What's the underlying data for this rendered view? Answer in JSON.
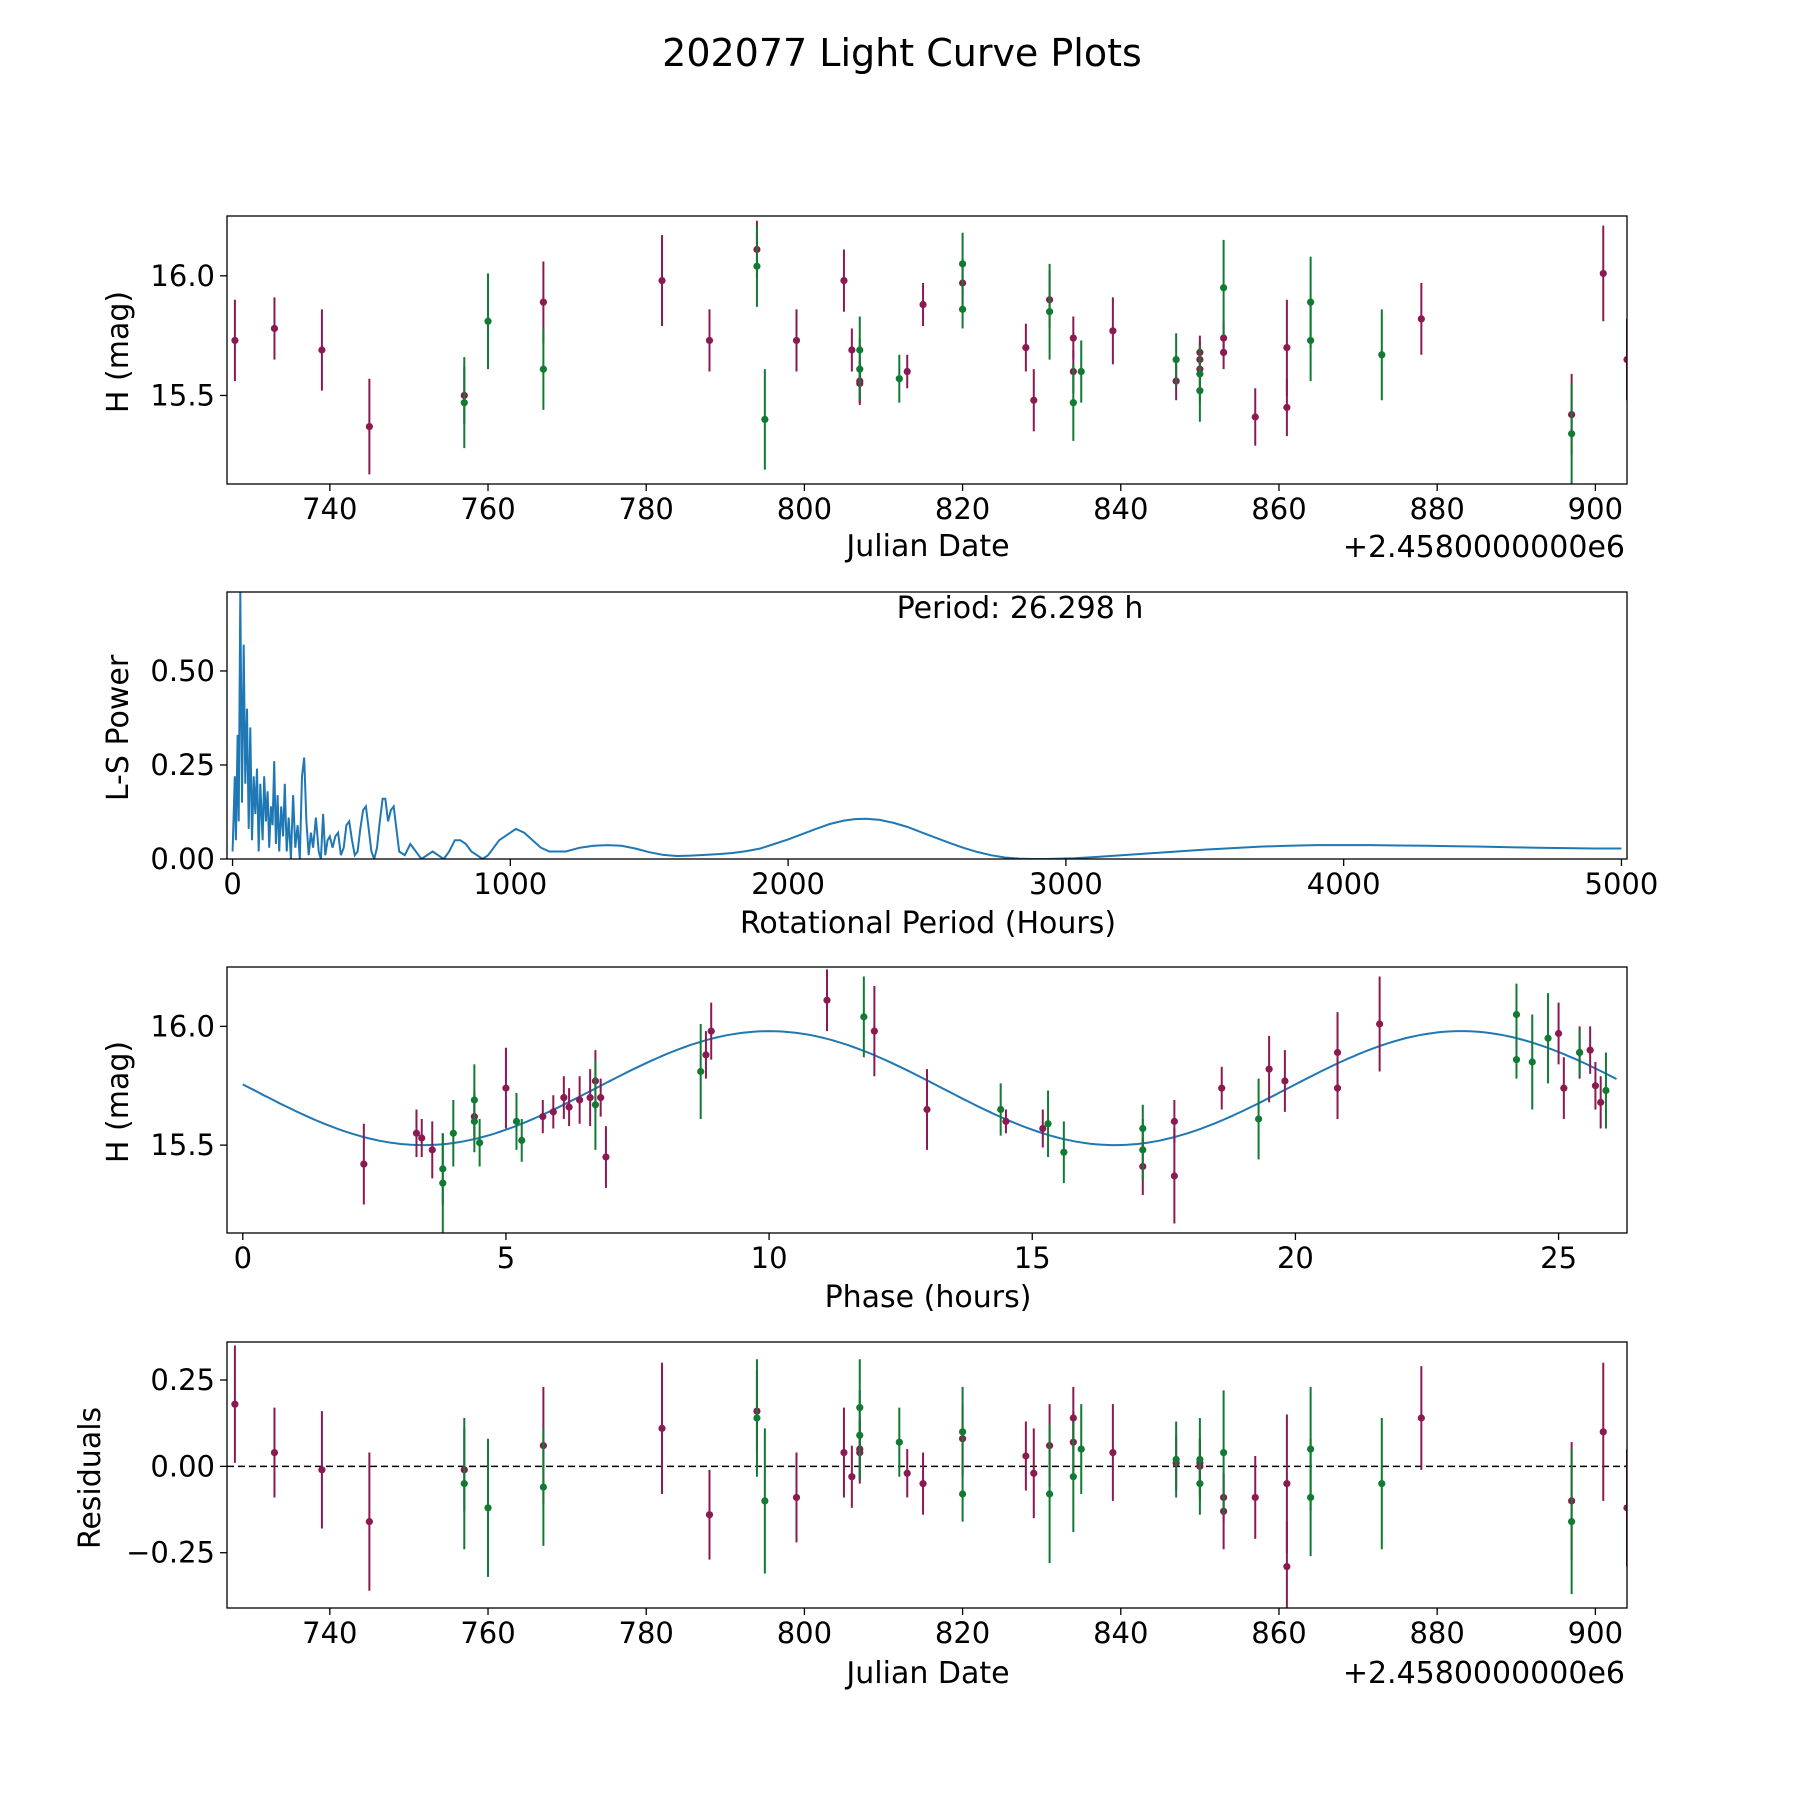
{
  "title": "202077 Light Curve Plots",
  "colors": {
    "magenta": "#8b1a52",
    "green": "#117a33",
    "line": "#1f77b4",
    "axis": "#000000"
  },
  "chart_data": [
    {
      "id": "lightcurve",
      "type": "scatter",
      "title": "",
      "xlabel": "Julian Date",
      "ylabel": "H (mag)",
      "offset_label": "+2.4580000000e6",
      "xlim": [
        727,
        904
      ],
      "ylim": [
        15.13,
        16.25
      ],
      "xticks": [
        740,
        760,
        780,
        800,
        820,
        840,
        860,
        880,
        900
      ],
      "xtick_labels": [
        "740",
        "760",
        "780",
        "800",
        "820",
        "840",
        "860",
        "880",
        "900"
      ],
      "yticks": [
        15.5,
        16.0
      ],
      "ytick_labels": [
        "15.5",
        "16.0"
      ],
      "grid": false,
      "series": [
        {
          "name": "magenta",
          "color": "#8b1a52",
          "x": [
            728.0,
            733.0,
            739.0,
            745.0,
            757.0,
            767.0,
            782.0,
            788.0,
            794.0,
            799.0,
            805.0,
            806.0,
            807.0,
            807.0,
            813.0,
            815.0,
            820.0,
            828.0,
            829.0,
            831.0,
            834.0,
            834.0,
            839.0,
            847.0,
            850.0,
            850.0,
            850.0,
            853.0,
            853.0,
            857.0,
            861.0,
            861.0,
            878.0,
            897.0,
            901.0,
            904.0
          ],
          "y": [
            15.73,
            15.78,
            15.69,
            15.37,
            15.5,
            15.89,
            15.98,
            15.73,
            16.11,
            15.73,
            15.98,
            15.69,
            15.56,
            15.55,
            15.6,
            15.88,
            15.97,
            15.7,
            15.48,
            15.9,
            15.6,
            15.74,
            15.77,
            15.56,
            15.61,
            15.65,
            15.68,
            15.68,
            15.74,
            15.41,
            15.45,
            15.7,
            15.82,
            15.42,
            16.01,
            15.65
          ],
          "err": [
            0.17,
            0.13,
            0.17,
            0.2,
            0.12,
            0.17,
            0.19,
            0.13,
            0.12,
            0.13,
            0.13,
            0.09,
            0.09,
            0.09,
            0.07,
            0.09,
            0.1,
            0.1,
            0.13,
            0.12,
            0.09,
            0.09,
            0.14,
            0.08,
            0.08,
            0.07,
            0.07,
            0.07,
            0.07,
            0.12,
            0.12,
            0.2,
            0.15,
            0.17,
            0.2,
            0.17
          ]
        },
        {
          "name": "green",
          "color": "#117a33",
          "x": [
            757.0,
            760.0,
            767.0,
            794.0,
            795.0,
            807.0,
            807.0,
            812.0,
            820.0,
            820.0,
            831.0,
            834.0,
            835.0,
            847.0,
            850.0,
            850.0,
            853.0,
            864.0,
            864.0,
            873.0,
            897.0
          ],
          "y": [
            15.47,
            15.81,
            15.61,
            16.04,
            15.4,
            15.61,
            15.69,
            15.57,
            16.05,
            15.86,
            15.85,
            15.47,
            15.6,
            15.65,
            15.52,
            15.59,
            15.95,
            15.89,
            15.73,
            15.67,
            15.34
          ],
          "err": [
            0.19,
            0.2,
            0.17,
            0.17,
            0.21,
            0.13,
            0.14,
            0.1,
            0.13,
            0.08,
            0.2,
            0.16,
            0.13,
            0.11,
            0.13,
            0.12,
            0.2,
            0.19,
            0.17,
            0.19,
            0.21
          ]
        }
      ]
    },
    {
      "id": "periodogram",
      "type": "line",
      "title": "",
      "annotation": "Period: 26.298 h",
      "xlabel": "Rotational Period (Hours)",
      "ylabel": "L-S Power",
      "xlim": [
        -20,
        5020
      ],
      "ylim": [
        0,
        0.71
      ],
      "xticks": [
        0,
        1000,
        2000,
        3000,
        4000,
        5000
      ],
      "xtick_labels": [
        "0",
        "1000",
        "2000",
        "3000",
        "4000",
        "5000"
      ],
      "yticks": [
        0,
        0.25,
        0.5
      ],
      "ytick_labels": [
        "0.00",
        "0.25",
        "0.50"
      ],
      "grid": false,
      "series": [
        {
          "name": "L-S Power",
          "color": "#1f77b4",
          "x": [
            0,
            8,
            12,
            18,
            22,
            28,
            34,
            40,
            46,
            52,
            58,
            64,
            70,
            76,
            82,
            88,
            94,
            100,
            108,
            114,
            120,
            126,
            132,
            138,
            144,
            150,
            156,
            162,
            168,
            175,
            182,
            188,
            195,
            202,
            210,
            218,
            226,
            234,
            242,
            250,
            258,
            266,
            274,
            282,
            290,
            300,
            310,
            318,
            326,
            334,
            342,
            350,
            360,
            370,
            380,
            390,
            400,
            410,
            420,
            430,
            440,
            450,
            460,
            470,
            480,
            490,
            500,
            510,
            520,
            530,
            540,
            550,
            560,
            570,
            580,
            590,
            600,
            620,
            640,
            660,
            680,
            700,
            720,
            740,
            760,
            780,
            800,
            820,
            840,
            860,
            880,
            900,
            920,
            940,
            960,
            980,
            1000,
            1020,
            1050,
            1080,
            1110,
            1140,
            1170,
            1200,
            1250,
            1300,
            1350,
            1400,
            1450,
            1500,
            1550,
            1600,
            1650,
            1700,
            1750,
            1800,
            1850,
            1900,
            1950,
            2000,
            2050,
            2100,
            2150,
            2200,
            2240,
            2280,
            2330,
            2380,
            2430,
            2480,
            2530,
            2580,
            2630,
            2680,
            2730,
            2780,
            2830,
            2880,
            2930,
            2980,
            3030,
            3100,
            3200,
            3300,
            3400,
            3500,
            3600,
            3700,
            3800,
            3900,
            4000,
            4100,
            4200,
            4300,
            4400,
            4500,
            4600,
            4700,
            4800,
            4900,
            5000
          ],
          "y": [
            0.02,
            0.22,
            0.05,
            0.33,
            0.1,
            0.71,
            0.15,
            0.57,
            0.2,
            0.4,
            0.08,
            0.35,
            0.05,
            0.22,
            0.12,
            0.24,
            0.02,
            0.2,
            0.05,
            0.22,
            0.1,
            0.18,
            0.03,
            0.14,
            0.09,
            0.26,
            0.04,
            0.17,
            0.02,
            0.14,
            0.06,
            0.2,
            0.02,
            0.11,
            0.0,
            0.17,
            0.03,
            0.09,
            0.0,
            0.22,
            0.27,
            0.1,
            0.01,
            0.07,
            0.03,
            0.11,
            0.02,
            0.0,
            0.12,
            0.01,
            0.05,
            0.06,
            0.03,
            0.06,
            0.07,
            0.01,
            0.03,
            0.09,
            0.1,
            0.05,
            0.01,
            0.02,
            0.08,
            0.13,
            0.14,
            0.08,
            0.02,
            0.0,
            0.03,
            0.1,
            0.16,
            0.16,
            0.1,
            0.13,
            0.14,
            0.08,
            0.02,
            0.01,
            0.04,
            0.02,
            0.0,
            0.01,
            0.02,
            0.01,
            0.0,
            0.02,
            0.05,
            0.05,
            0.04,
            0.02,
            0.01,
            0.0,
            0.01,
            0.03,
            0.05,
            0.06,
            0.07,
            0.08,
            0.07,
            0.05,
            0.03,
            0.02,
            0.02,
            0.02,
            0.03,
            0.035,
            0.037,
            0.035,
            0.028,
            0.018,
            0.011,
            0.008,
            0.009,
            0.011,
            0.013,
            0.016,
            0.021,
            0.028,
            0.04,
            0.052,
            0.066,
            0.08,
            0.093,
            0.102,
            0.106,
            0.107,
            0.104,
            0.096,
            0.085,
            0.071,
            0.057,
            0.043,
            0.03,
            0.019,
            0.01,
            0.004,
            0.001,
            0.0,
            0.0,
            0.001,
            0.002,
            0.005,
            0.01,
            0.015,
            0.02,
            0.025,
            0.029,
            0.033,
            0.035,
            0.037,
            0.037,
            0.037,
            0.036,
            0.035,
            0.034,
            0.033,
            0.031,
            0.03,
            0.029,
            0.028,
            0.028
          ]
        }
      ]
    },
    {
      "id": "phase",
      "type": "scatter",
      "title": "",
      "xlabel": "Phase (hours)",
      "ylabel": "H (mag)",
      "xlim": [
        -0.3,
        26.3
      ],
      "ylim": [
        15.13,
        16.25
      ],
      "xticks": [
        0,
        5,
        10,
        15,
        20,
        25
      ],
      "xtick_labels": [
        "0",
        "5",
        "10",
        "15",
        "20",
        "25"
      ],
      "yticks": [
        15.5,
        16.0
      ],
      "ytick_labels": [
        "15.5",
        "16.0"
      ],
      "grid": false,
      "model": {
        "color": "#1f77b4",
        "mean": 15.74,
        "amplitude": 0.24,
        "period": 13.15,
        "peak_phase": 10.0,
        "x_range": [
          0.0,
          26.1
        ]
      },
      "series": [
        {
          "name": "magenta",
          "color": "#8b1a52",
          "x": [
            2.3,
            3.3,
            3.4,
            3.6,
            4.4,
            5.0,
            5.7,
            5.9,
            6.1,
            6.2,
            6.4,
            6.6,
            6.7,
            6.8,
            6.9,
            8.8,
            8.9,
            11.1,
            12.0,
            13.0,
            15.2,
            14.5,
            17.1,
            17.7,
            17.7,
            18.6,
            19.5,
            19.8,
            20.8,
            20.8,
            21.6,
            25.0,
            25.1,
            25.4,
            25.6,
            25.8,
            25.7
          ],
          "y": [
            15.42,
            15.55,
            15.53,
            15.48,
            15.62,
            15.74,
            15.62,
            15.64,
            15.7,
            15.66,
            15.69,
            15.7,
            15.77,
            15.7,
            15.45,
            15.88,
            15.98,
            16.11,
            15.98,
            15.65,
            15.57,
            15.6,
            15.41,
            15.6,
            15.37,
            15.74,
            15.82,
            15.77,
            15.89,
            15.74,
            16.01,
            15.97,
            15.74,
            15.89,
            15.9,
            15.68,
            15.75
          ],
          "err": [
            0.17,
            0.1,
            0.08,
            0.12,
            0.09,
            0.17,
            0.07,
            0.07,
            0.09,
            0.08,
            0.1,
            0.12,
            0.13,
            0.08,
            0.13,
            0.1,
            0.12,
            0.13,
            0.19,
            0.17,
            0.08,
            0.05,
            0.12,
            0.09,
            0.2,
            0.09,
            0.14,
            0.13,
            0.17,
            0.13,
            0.2,
            0.13,
            0.13,
            0.11,
            0.1,
            0.11,
            0.1
          ]
        },
        {
          "name": "green",
          "color": "#117a33",
          "x": [
            3.8,
            3.8,
            4.0,
            4.4,
            4.4,
            4.5,
            5.2,
            5.3,
            6.7,
            8.7,
            11.8,
            14.4,
            15.3,
            15.6,
            17.1,
            17.1,
            19.3,
            24.2,
            24.2,
            24.5,
            24.8,
            25.4,
            25.9
          ],
          "y": [
            15.34,
            15.4,
            15.55,
            15.6,
            15.69,
            15.51,
            15.6,
            15.52,
            15.67,
            15.81,
            16.04,
            15.65,
            15.59,
            15.47,
            15.57,
            15.48,
            15.61,
            16.05,
            15.86,
            15.85,
            15.95,
            15.89,
            15.73
          ],
          "err": [
            0.21,
            0.15,
            0.14,
            0.13,
            0.15,
            0.1,
            0.12,
            0.09,
            0.19,
            0.2,
            0.17,
            0.11,
            0.14,
            0.13,
            0.1,
            0.13,
            0.17,
            0.13,
            0.08,
            0.2,
            0.19,
            0.1,
            0.16
          ]
        }
      ]
    },
    {
      "id": "residuals",
      "type": "scatter",
      "title": "",
      "xlabel": "Julian Date",
      "ylabel": "Residuals",
      "offset_label": "+2.4580000000e6",
      "xlim": [
        727,
        904
      ],
      "ylim": [
        -0.41,
        0.36
      ],
      "xticks": [
        740,
        760,
        780,
        800,
        820,
        840,
        860,
        880,
        900
      ],
      "xtick_labels": [
        "740",
        "760",
        "780",
        "800",
        "820",
        "840",
        "860",
        "880",
        "900"
      ],
      "yticks": [
        -0.25,
        0.0,
        0.25
      ],
      "ytick_labels": [
        "−0.25",
        "0.00",
        "0.25"
      ],
      "reference_line": 0.0,
      "grid": false,
      "series": [
        {
          "name": "magenta",
          "color": "#8b1a52",
          "x": [
            728.0,
            733.0,
            739.0,
            745.0,
            757.0,
            767.0,
            782.0,
            788.0,
            794.0,
            799.0,
            805.0,
            806.0,
            807.0,
            807.0,
            813.0,
            815.0,
            820.0,
            828.0,
            829.0,
            831.0,
            834.0,
            834.0,
            839.0,
            847.0,
            850.0,
            850.0,
            853.0,
            853.0,
            857.0,
            861.0,
            861.0,
            878.0,
            897.0,
            901.0,
            904.0
          ],
          "y": [
            0.18,
            0.04,
            -0.01,
            -0.16,
            -0.01,
            0.06,
            0.11,
            -0.14,
            0.16,
            -0.09,
            0.04,
            -0.03,
            0.05,
            0.04,
            -0.02,
            -0.05,
            0.08,
            0.03,
            -0.02,
            0.06,
            0.07,
            0.14,
            0.04,
            0.01,
            0.0,
            0.01,
            -0.09,
            -0.13,
            -0.09,
            -0.29,
            -0.05,
            0.14,
            -0.1,
            0.1,
            -0.12
          ],
          "err": [
            0.17,
            0.13,
            0.17,
            0.2,
            0.12,
            0.17,
            0.19,
            0.13,
            0.12,
            0.13,
            0.13,
            0.09,
            0.09,
            0.09,
            0.07,
            0.09,
            0.1,
            0.1,
            0.13,
            0.12,
            0.09,
            0.09,
            0.14,
            0.08,
            0.08,
            0.07,
            0.07,
            0.11,
            0.12,
            0.13,
            0.2,
            0.15,
            0.17,
            0.2,
            0.17
          ]
        },
        {
          "name": "green",
          "color": "#117a33",
          "x": [
            757.0,
            760.0,
            767.0,
            794.0,
            795.0,
            807.0,
            807.0,
            812.0,
            820.0,
            820.0,
            831.0,
            834.0,
            835.0,
            847.0,
            850.0,
            850.0,
            853.0,
            864.0,
            864.0,
            873.0,
            897.0
          ],
          "y": [
            -0.05,
            -0.12,
            -0.06,
            0.14,
            -0.1,
            0.09,
            0.17,
            0.07,
            0.1,
            -0.08,
            -0.08,
            -0.03,
            0.05,
            0.02,
            -0.05,
            0.02,
            0.04,
            0.05,
            -0.09,
            -0.05,
            -0.16
          ],
          "err": [
            0.19,
            0.2,
            0.17,
            0.17,
            0.21,
            0.13,
            0.14,
            0.1,
            0.13,
            0.08,
            0.2,
            0.16,
            0.13,
            0.11,
            0.09,
            0.12,
            0.18,
            0.18,
            0.17,
            0.19,
            0.21
          ]
        }
      ]
    }
  ]
}
